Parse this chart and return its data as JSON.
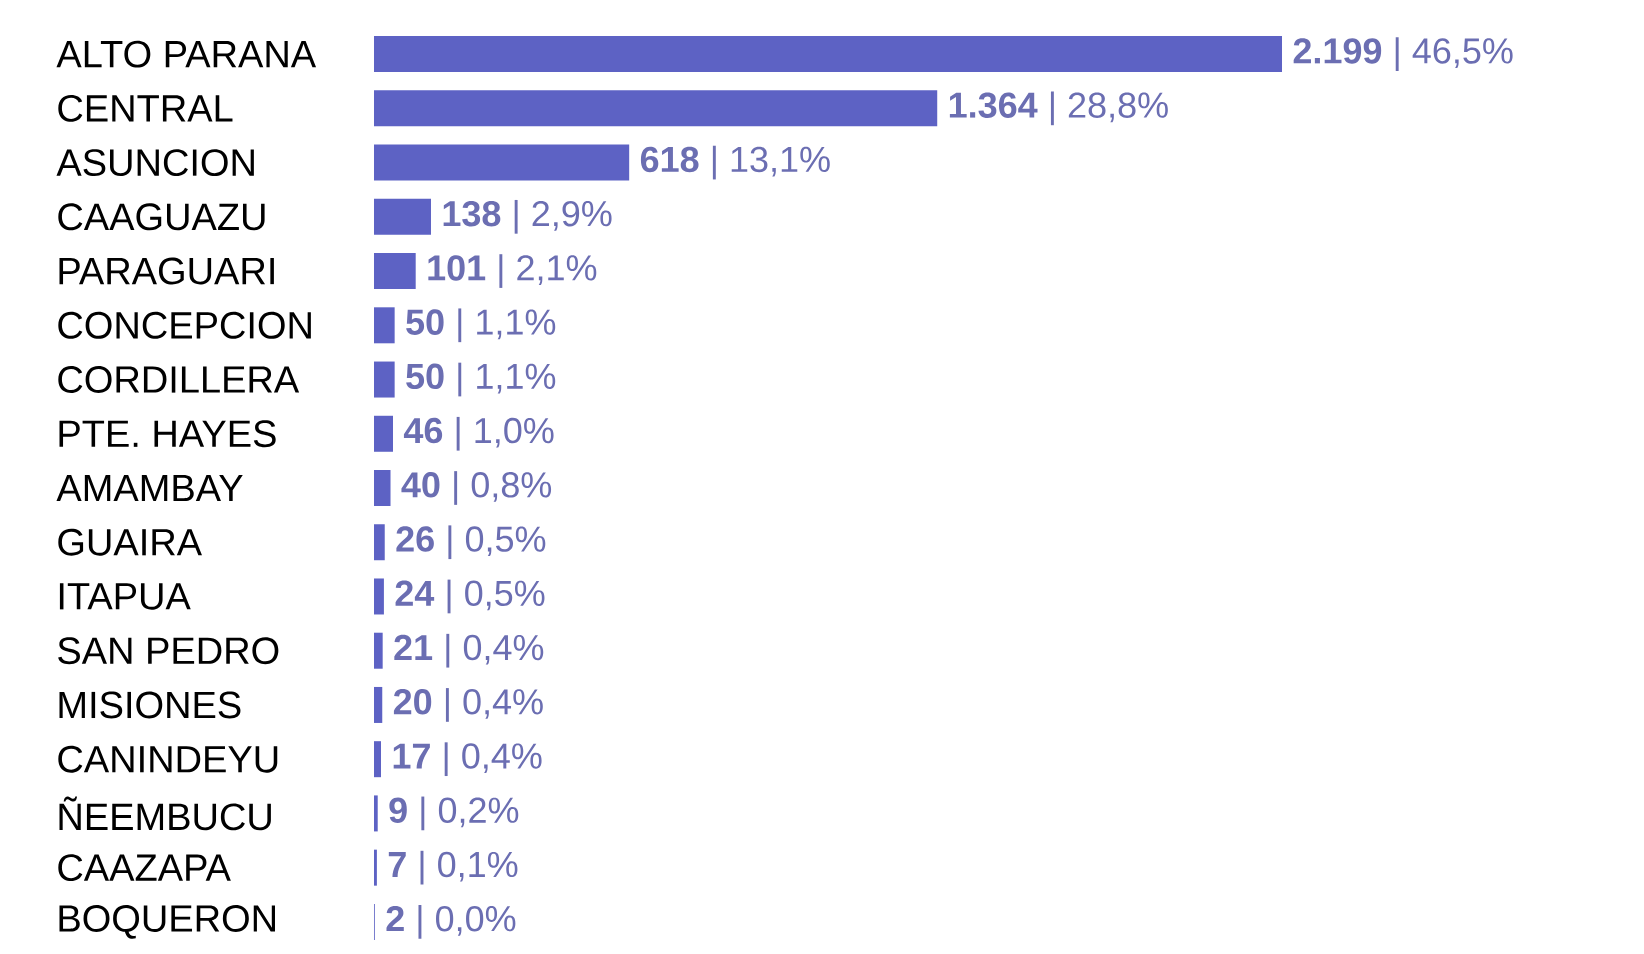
{
  "chart_data": {
    "type": "bar",
    "orientation": "horizontal",
    "categories": [
      "ALTO PARANA",
      "CENTRAL",
      "ASUNCION",
      "CAAGUAZU",
      "PARAGUARI",
      "CONCEPCION",
      "CORDILLERA",
      "PTE. HAYES",
      "AMAMBAY",
      "GUAIRA",
      "ITAPUA",
      "SAN PEDRO",
      "MISIONES",
      "CANINDEYU",
      "ÑEEMBUCU",
      "CAAZAPA",
      "BOQUERON"
    ],
    "values": [
      2199,
      1364,
      618,
      138,
      101,
      50,
      50,
      46,
      40,
      26,
      24,
      21,
      20,
      17,
      9,
      7,
      2
    ],
    "color": "#5d62c4",
    "value_labels": [
      "**2.199** | 46,5%",
      "**1.364** | 28,8%",
      "**618** | 13,1%",
      "**138** | 2,9%",
      "**101** | 2,1%",
      "**50** | 1,1%",
      "**50** | 1,1%",
      "**46** | 1,0%",
      "**40** | 0,8%",
      "**26** | 0,5%",
      "**24** | 0,5%",
      "**21** | 0,4%",
      "**20** | 0,4%",
      "**17** | 0,4%",
      "**9** | 0,2%",
      "**7** | 0,1%",
      "**2** | 0,0%"
    ]
  }
}
